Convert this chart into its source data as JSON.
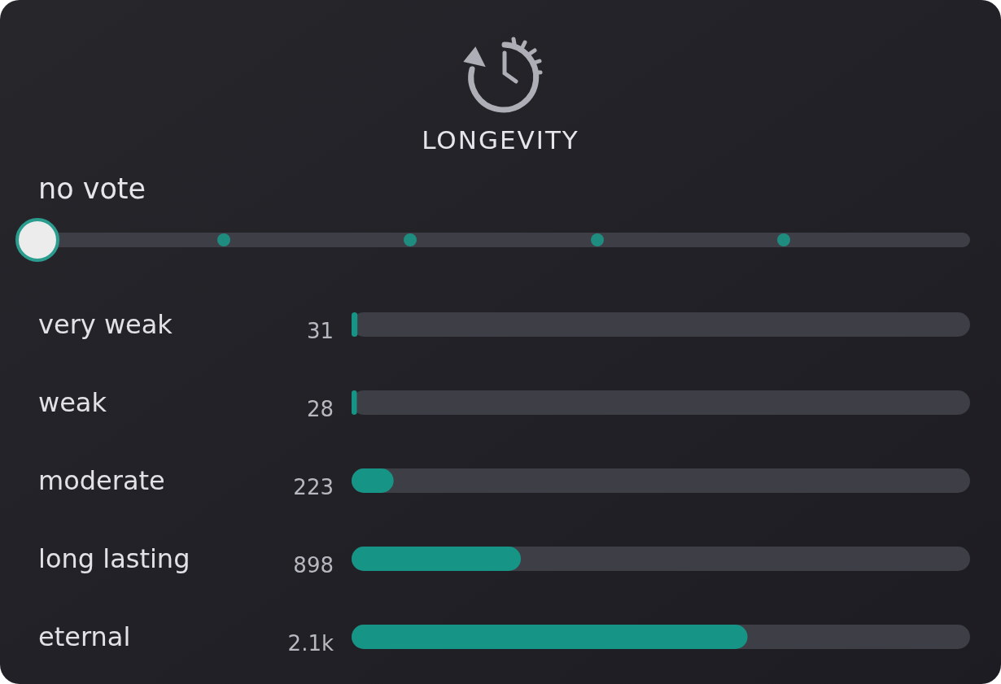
{
  "chart_data": {
    "type": "bar",
    "orientation": "horizontal",
    "title": "LONGEVITY",
    "annotations": [
      "no vote"
    ],
    "categories": [
      "very weak",
      "weak",
      "moderate",
      "long lasting",
      "eternal"
    ],
    "values": [
      31,
      28,
      223,
      898,
      2100
    ],
    "value_labels": [
      "31",
      "28",
      "223",
      "898",
      "2.1k"
    ],
    "color": "#169485"
  }
}
